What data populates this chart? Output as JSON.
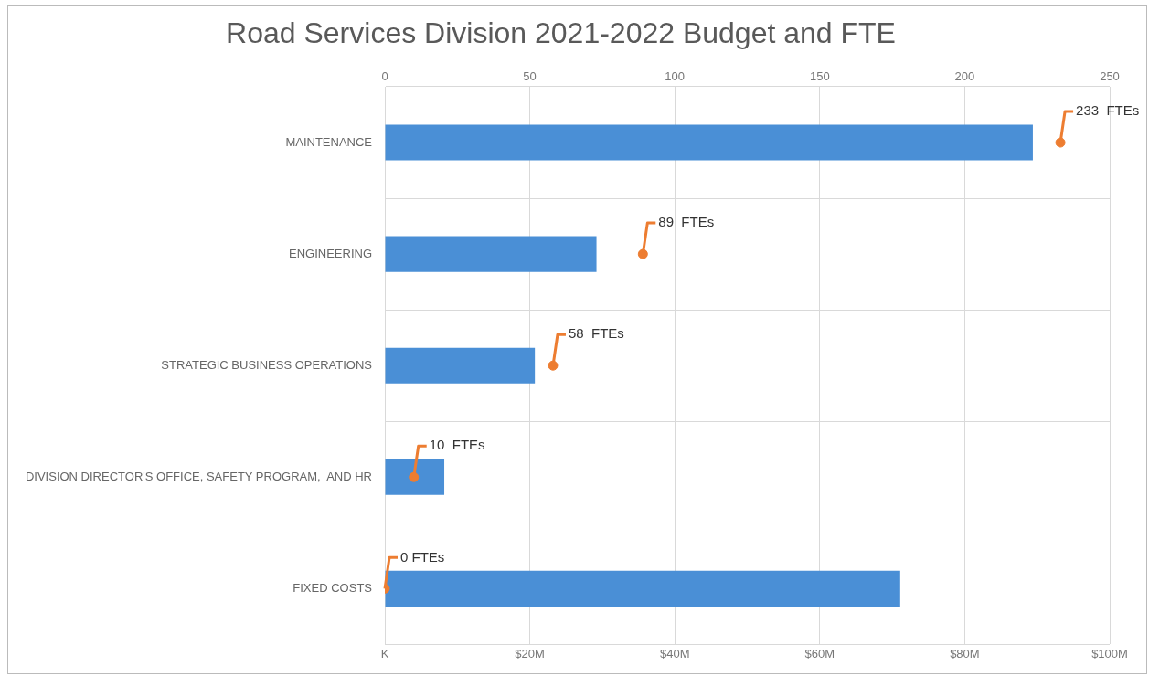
{
  "chart_data": {
    "type": "bar",
    "orientation": "horizontal",
    "title": "Road Services Division 2021-2022 Budget and FTE",
    "categories": [
      "MAINTENANCE",
      "ENGINEERING",
      "STRATEGIC BUSINESS OPERATIONS",
      "DIVISION DIRECTOR'S OFFICE, SAFETY PROGRAM,  AND HR",
      "FIXED COSTS"
    ],
    "series": [
      {
        "color": "#4a8fd6",
        "values": [
          89.4,
          29.2,
          20.7,
          8.2,
          71.1
        ]
      },
      {
        "type": "scatter",
        "axis": "x2",
        "color": "#ed7d31",
        "marker": "circle",
        "values": [
          233,
          89,
          58,
          10,
          0
        ],
        "value_labels": [
          "233  FTEs",
          "89  FTEs",
          "58  FTEs",
          "10  FTEs",
          "0 FTEs"
        ]
      }
    ],
    "xlim": [
      0,
      100
    ],
    "xticks": [
      {
        "value": 0,
        "label": "K"
      },
      {
        "value": 20,
        "label": "$20M"
      },
      {
        "value": 40,
        "label": "$40M"
      },
      {
        "value": 60,
        "label": "$60M"
      },
      {
        "value": 80,
        "label": "$80M"
      },
      {
        "value": 100,
        "label": "$100M"
      }
    ],
    "x2lim": [
      0,
      250
    ],
    "x2ticks": [
      0,
      50,
      100,
      150,
      200,
      250
    ],
    "grid": true,
    "legend": false
  }
}
